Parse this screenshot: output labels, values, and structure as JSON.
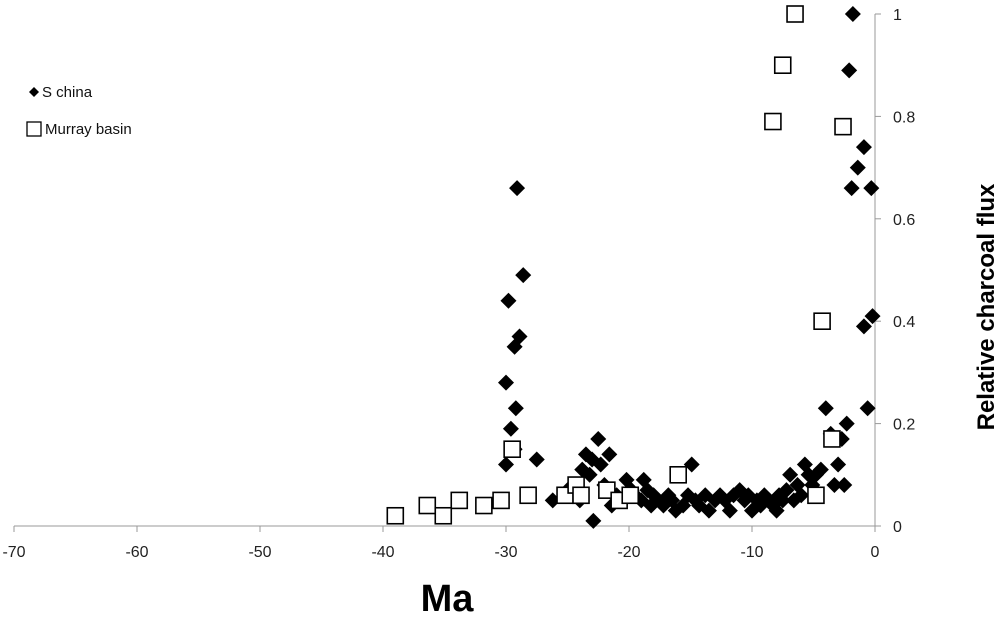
{
  "chart_data": {
    "type": "scatter",
    "title": "",
    "xlabel": "Ma",
    "ylabel": "Relative charcoal flux",
    "xlim": [
      -70,
      0
    ],
    "ylim": [
      0,
      1
    ],
    "x_ticks": [
      -70,
      -60,
      -50,
      -40,
      -30,
      -20,
      -10,
      0
    ],
    "y_ticks": [
      0,
      0.2,
      0.4,
      0.6,
      0.8,
      1
    ],
    "x_tick_labels": [
      "-70",
      "-60",
      "-50",
      "-40",
      "-30",
      "-20",
      "-10",
      "0"
    ],
    "y_tick_labels": [
      "0",
      "0.2",
      "0.4",
      "0.6",
      "0.8",
      "1"
    ],
    "grid": false,
    "legend_position": "top-left",
    "series": [
      {
        "name": "S china",
        "marker": "filled-diamond",
        "color": "#000000",
        "points": [
          [
            -29.1,
            0.66
          ],
          [
            -28.6,
            0.49
          ],
          [
            -29.8,
            0.44
          ],
          [
            -28.9,
            0.37
          ],
          [
            -29.3,
            0.35
          ],
          [
            -30.0,
            0.28
          ],
          [
            -29.2,
            0.23
          ],
          [
            -29.6,
            0.19
          ],
          [
            -29.3,
            0.15
          ],
          [
            -30.0,
            0.12
          ],
          [
            -27.5,
            0.13
          ],
          [
            -26.2,
            0.05
          ],
          [
            -25.0,
            0.07
          ],
          [
            -24.5,
            0.08
          ],
          [
            -24.0,
            0.05
          ],
          [
            -23.8,
            0.11
          ],
          [
            -23.5,
            0.14
          ],
          [
            -23.2,
            0.1
          ],
          [
            -23.0,
            0.13
          ],
          [
            -22.9,
            0.01
          ],
          [
            -22.5,
            0.17
          ],
          [
            -22.3,
            0.12
          ],
          [
            -22.0,
            0.08
          ],
          [
            -21.6,
            0.14
          ],
          [
            -21.4,
            0.04
          ],
          [
            -21.0,
            0.06
          ],
          [
            -20.5,
            0.05
          ],
          [
            -20.2,
            0.09
          ],
          [
            -19.8,
            0.07
          ],
          [
            -19.5,
            0.06
          ],
          [
            -19.0,
            0.05
          ],
          [
            -18.8,
            0.09
          ],
          [
            -18.5,
            0.07
          ],
          [
            -18.2,
            0.04
          ],
          [
            -18.0,
            0.06
          ],
          [
            -17.6,
            0.05
          ],
          [
            -17.2,
            0.04
          ],
          [
            -16.8,
            0.06
          ],
          [
            -16.5,
            0.05
          ],
          [
            -16.2,
            0.03
          ],
          [
            -16.0,
            0.1
          ],
          [
            -15.6,
            0.04
          ],
          [
            -15.2,
            0.06
          ],
          [
            -14.9,
            0.12
          ],
          [
            -14.6,
            0.05
          ],
          [
            -14.3,
            0.04
          ],
          [
            -13.8,
            0.06
          ],
          [
            -13.5,
            0.03
          ],
          [
            -13.0,
            0.05
          ],
          [
            -12.6,
            0.06
          ],
          [
            -12.2,
            0.05
          ],
          [
            -11.8,
            0.03
          ],
          [
            -11.5,
            0.06
          ],
          [
            -11.0,
            0.07
          ],
          [
            -10.6,
            0.05
          ],
          [
            -10.3,
            0.06
          ],
          [
            -10.0,
            0.03
          ],
          [
            -9.6,
            0.05
          ],
          [
            -9.3,
            0.04
          ],
          [
            -9.0,
            0.06
          ],
          [
            -8.6,
            0.05
          ],
          [
            -8.3,
            0.04
          ],
          [
            -8.0,
            0.03
          ],
          [
            -7.8,
            0.06
          ],
          [
            -7.5,
            0.05
          ],
          [
            -7.2,
            0.07
          ],
          [
            -6.9,
            0.1
          ],
          [
            -6.6,
            0.05
          ],
          [
            -6.3,
            0.08
          ],
          [
            -6.0,
            0.06
          ],
          [
            -5.7,
            0.12
          ],
          [
            -5.4,
            0.1
          ],
          [
            -5.1,
            0.08
          ],
          [
            -4.8,
            0.1
          ],
          [
            -4.4,
            0.11
          ],
          [
            -4.0,
            0.23
          ],
          [
            -3.6,
            0.18
          ],
          [
            -3.3,
            0.08
          ],
          [
            -3.0,
            0.12
          ],
          [
            -2.7,
            0.17
          ],
          [
            -2.5,
            0.08
          ],
          [
            -2.3,
            0.2
          ],
          [
            -2.1,
            0.89
          ],
          [
            -1.8,
            1.0
          ],
          [
            -1.9,
            0.66
          ],
          [
            -1.4,
            0.7
          ],
          [
            -0.9,
            0.74
          ],
          [
            -0.9,
            0.39
          ],
          [
            -0.6,
            0.23
          ],
          [
            -0.3,
            0.66
          ],
          [
            -0.2,
            0.41
          ]
        ]
      },
      {
        "name": "Murray basin",
        "marker": "open-square",
        "color": "#000000",
        "points": [
          [
            -39.0,
            0.02
          ],
          [
            -36.4,
            0.04
          ],
          [
            -35.1,
            0.02
          ],
          [
            -33.8,
            0.05
          ],
          [
            -31.8,
            0.04
          ],
          [
            -30.4,
            0.05
          ],
          [
            -29.5,
            0.15
          ],
          [
            -28.2,
            0.06
          ],
          [
            -25.2,
            0.06
          ],
          [
            -24.3,
            0.08
          ],
          [
            -23.9,
            0.06
          ],
          [
            -21.8,
            0.07
          ],
          [
            -20.8,
            0.05
          ],
          [
            -19.9,
            0.06
          ],
          [
            -16.0,
            0.1
          ],
          [
            -8.3,
            0.79
          ],
          [
            -7.5,
            0.9
          ],
          [
            -6.5,
            1.0
          ],
          [
            -4.8,
            0.06
          ],
          [
            -4.3,
            0.4
          ],
          [
            -3.5,
            0.17
          ],
          [
            -2.6,
            0.78
          ]
        ]
      }
    ]
  }
}
